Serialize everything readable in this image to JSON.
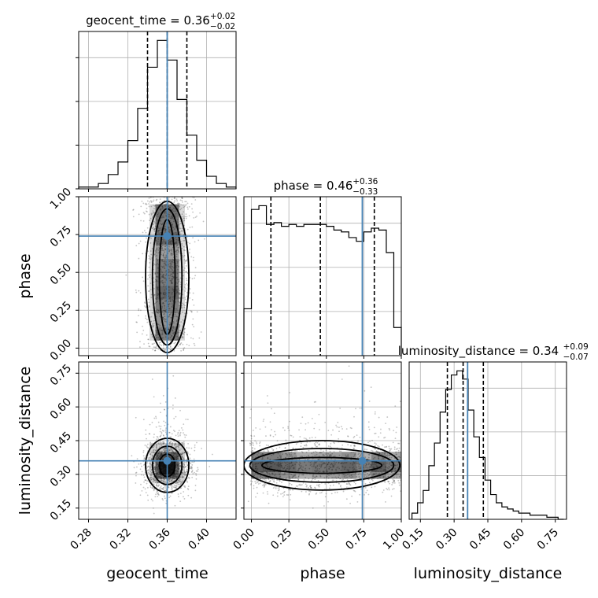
{
  "chart_data": {
    "type": "corner",
    "truth_color": "#4682b4",
    "grid": true,
    "parameters": [
      {
        "name": "geocent_time",
        "median": 0.36,
        "plus": 0.02,
        "minus": 0.02,
        "truth": 0.36,
        "range": [
          0.27,
          0.43
        ],
        "ticks": [
          "0.28",
          "0.32",
          "0.36",
          "0.40"
        ],
        "title": "geocent_time = 0.36",
        "err_plus": "+0.02",
        "err_minus": "−0.02",
        "quantiles": [
          0.34,
          0.36,
          0.38
        ]
      },
      {
        "name": "phase",
        "median": 0.46,
        "plus": 0.36,
        "minus": 0.33,
        "truth": 0.74,
        "range": [
          -0.05,
          1.0
        ],
        "ticks": [
          "0.00",
          "0.25",
          "0.50",
          "0.75",
          "1.00"
        ],
        "title": "phase = 0.46",
        "err_plus": "+0.36",
        "err_minus": "−0.33",
        "quantiles": [
          0.13,
          0.46,
          0.82
        ]
      },
      {
        "name": "luminosity_distance",
        "median": 0.34,
        "plus": 0.09,
        "minus": 0.07,
        "truth": 0.36,
        "range": [
          0.1,
          0.8
        ],
        "ticks": [
          "0.15",
          "0.30",
          "0.45",
          "0.60",
          "0.75"
        ],
        "title": "luminosity_distance = 0.34",
        "err_plus": "+0.09",
        "err_minus": "−0.07",
        "quantiles": [
          0.27,
          0.34,
          0.43
        ]
      }
    ],
    "histograms": {
      "geocent_time": {
        "x": [
          0.275,
          0.285,
          0.295,
          0.305,
          0.315,
          0.325,
          0.335,
          0.345,
          0.355,
          0.365,
          0.375,
          0.385,
          0.395,
          0.405,
          0.415,
          0.425
        ],
        "values": [
          1,
          1,
          3,
          8,
          15,
          27,
          45,
          68,
          83,
          72,
          50,
          30,
          16,
          7,
          3,
          1
        ]
      },
      "phase": {
        "x": [
          -0.025,
          0.025,
          0.075,
          0.125,
          0.175,
          0.225,
          0.275,
          0.325,
          0.375,
          0.425,
          0.475,
          0.525,
          0.575,
          0.625,
          0.675,
          0.725,
          0.775,
          0.825,
          0.875,
          0.925,
          0.975
        ],
        "values": [
          25,
          78,
          80,
          70,
          71,
          69,
          70,
          69,
          70,
          70,
          70,
          69,
          67,
          66,
          63,
          61,
          66,
          68,
          67,
          55,
          15
        ]
      },
      "luminosity_distance": {
        "x": [
          0.125,
          0.15,
          0.175,
          0.2,
          0.225,
          0.25,
          0.275,
          0.3,
          0.325,
          0.35,
          0.375,
          0.4,
          0.425,
          0.45,
          0.475,
          0.5,
          0.525,
          0.55,
          0.575,
          0.6,
          0.625,
          0.65,
          0.675,
          0.7,
          0.725,
          0.75,
          0.775
        ],
        "values": [
          3,
          8,
          14,
          26,
          37,
          52,
          63,
          70,
          72,
          68,
          53,
          40,
          30,
          19,
          12,
          8,
          6,
          5,
          4,
          3,
          3,
          2,
          2,
          2,
          1,
          1,
          0
        ]
      }
    }
  }
}
